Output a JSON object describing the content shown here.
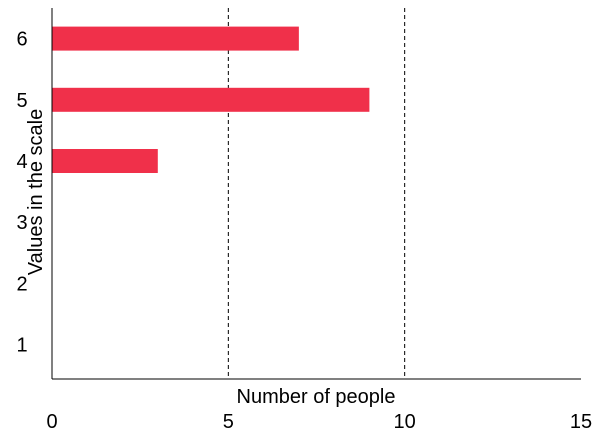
{
  "chart_data": {
    "type": "bar",
    "orientation": "horizontal",
    "title": "",
    "xlabel": "Number of people",
    "ylabel": "Values in the scale",
    "categories": [
      "1",
      "2",
      "3",
      "4",
      "5",
      "6"
    ],
    "values": [
      0,
      0,
      0,
      3,
      9,
      7
    ],
    "xlim": [
      0,
      15
    ],
    "x_ticks": [
      "0",
      "5",
      "10",
      "15"
    ],
    "grid": "vertical dashed lines at 5 and 10",
    "bar_color": "#f0304a"
  }
}
